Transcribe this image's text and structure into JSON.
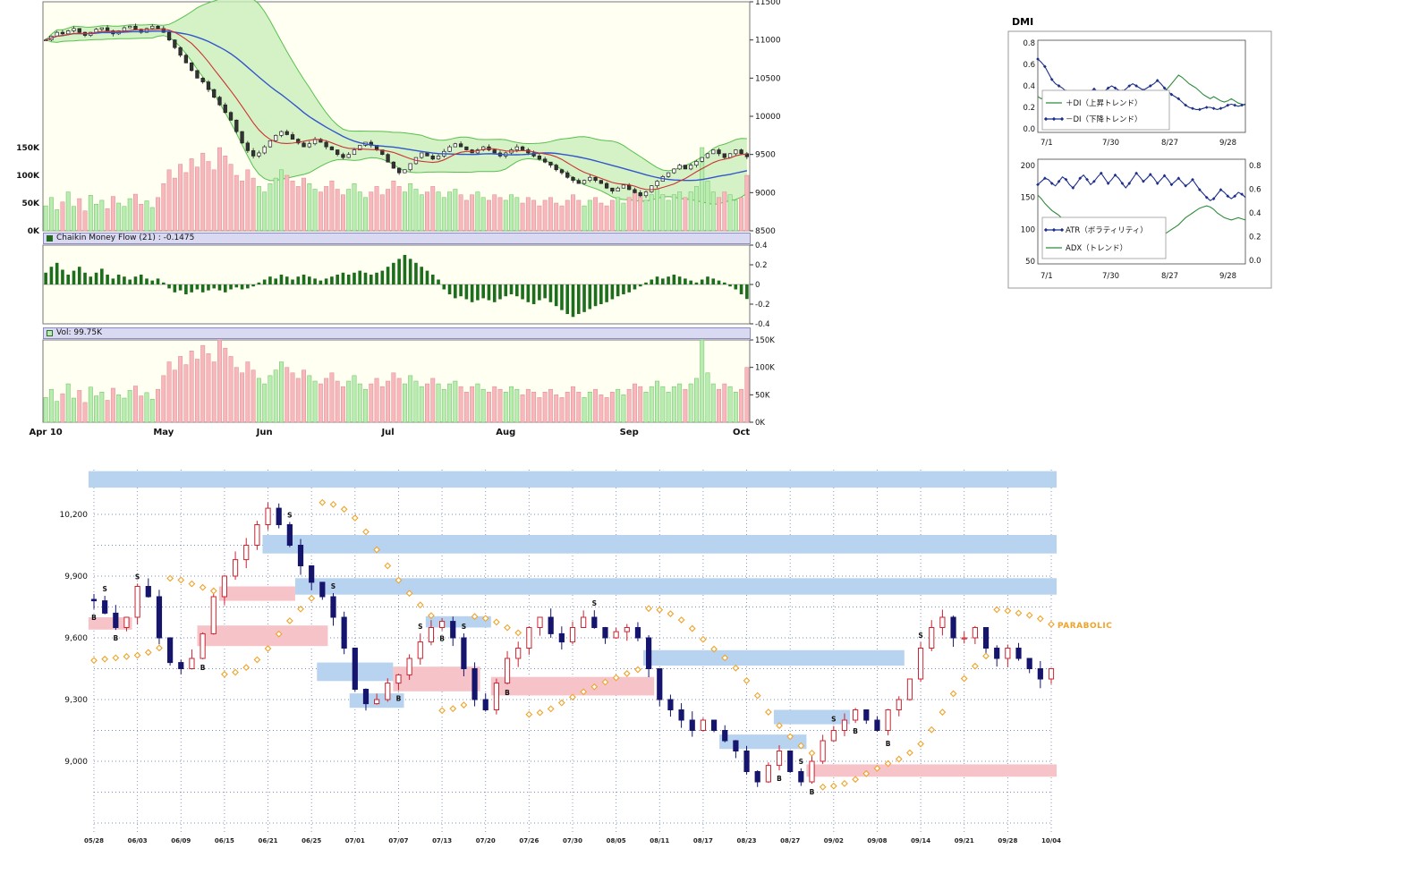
{
  "colors": {
    "panel_bg": "#fffff2",
    "bollinger_fill": "#c9efb9",
    "bollinger_edge": "#57c04f",
    "ma_short": "#cc3333",
    "ma_long": "#3355cc",
    "candle_outline": "#222222",
    "vol_up": "#b8ecb0",
    "vol_up_edge": "#6abf60",
    "vol_down": "#f6b8bc",
    "vol_down_edge": "#e08890",
    "chaikin_bar": "#1c6e1c",
    "di_plus": "#2e8b3a",
    "di_minus": "#1c2f8a",
    "atr": "#1c2f8a",
    "adx": "#2e8b3a",
    "band_blue": "#b7d3f0",
    "band_pink": "#f6c3c8",
    "para_up_outline": "#cc2330",
    "para_down_fill": "#15156e",
    "sar": "#efa32a",
    "grid_dot": "#7a8fbf",
    "strip_bg": "#d9d9f2"
  },
  "main_chart": {
    "price_axis": [
      "11500",
      "11000",
      "10500",
      "10000",
      "9500",
      "9000",
      "8500"
    ],
    "vol_overlay_axis": [
      "150K",
      "100K",
      "50K",
      "0K"
    ],
    "months": [
      {
        "label": "Apr 10",
        "i": 0
      },
      {
        "label": "May",
        "i": 21
      },
      {
        "label": "Jun",
        "i": 39
      },
      {
        "label": "Jul",
        "i": 61
      },
      {
        "label": "Aug",
        "i": 82
      },
      {
        "label": "Sep",
        "i": 104
      },
      {
        "label": "Oct",
        "i": 124
      }
    ],
    "chaikin": {
      "header": "Chaikin Money Flow (21) : -0.1475",
      "axis": [
        "0.4",
        "0.2",
        "0",
        "-0.2",
        "-0.4"
      ]
    },
    "vol": {
      "header": "Vol: 99.75K",
      "axis": [
        "150K",
        "100K",
        "50K",
        "0K"
      ]
    }
  },
  "dmi": {
    "title": "DMI",
    "x_labels": [
      "7/1",
      "7/30",
      "8/27",
      "9/28"
    ],
    "chart1": {
      "y_labels": [
        "0.8",
        "0.6",
        "0.4",
        "0.2",
        "0.0"
      ],
      "legend": [
        "＋DI（上昇トレンド）",
        "－DI（下降トレンド）"
      ]
    },
    "chart2": {
      "left_labels": [
        "200",
        "150",
        "100",
        "50"
      ],
      "right_labels": [
        "0.8",
        "0.6",
        "0.4",
        "0.2",
        "0.0"
      ],
      "legend": [
        "ATR（ボラティリティ）",
        "ADX（トレンド）"
      ]
    }
  },
  "parabolic": {
    "label": "PARABOLIC",
    "y_axis": [
      {
        "v": 10200,
        "t": "10,200"
      },
      {
        "v": 9900,
        "t": "9,900"
      },
      {
        "v": 9600,
        "t": "9,600"
      },
      {
        "v": 9300,
        "t": "9,300"
      },
      {
        "v": 9000,
        "t": "9,000"
      }
    ]
  },
  "chart_data": [
    {
      "type": "candlestick",
      "name": "daily-price-with-bollinger",
      "ylim": [
        8500,
        11500
      ],
      "overlays": [
        "bollinger(20,2)",
        "sma9",
        "sma25"
      ],
      "closes": [
        11000,
        11050,
        11100,
        11080,
        11120,
        11150,
        11100,
        11060,
        11100,
        11140,
        11160,
        11120,
        11080,
        11120,
        11160,
        11180,
        11140,
        11100,
        11150,
        11180,
        11150,
        11100,
        11000,
        10900,
        10800,
        10700,
        10600,
        10500,
        10450,
        10350,
        10250,
        10150,
        10050,
        9950,
        9800,
        9650,
        9550,
        9480,
        9520,
        9600,
        9680,
        9750,
        9800,
        9760,
        9700,
        9650,
        9600,
        9640,
        9700,
        9660,
        9600,
        9560,
        9500,
        9460,
        9500,
        9560,
        9620,
        9660,
        9620,
        9560,
        9500,
        9400,
        9320,
        9260,
        9300,
        9380,
        9460,
        9520,
        9480,
        9440,
        9480,
        9540,
        9600,
        9640,
        9600,
        9560,
        9520,
        9560,
        9600,
        9560,
        9520,
        9480,
        9520,
        9560,
        9600,
        9560,
        9520,
        9480,
        9440,
        9400,
        9360,
        9300,
        9260,
        9200,
        9160,
        9120,
        9160,
        9200,
        9160,
        9120,
        9060,
        9020,
        9060,
        9100,
        9040,
        9000,
        8960,
        9010,
        9090,
        9150,
        9210,
        9260,
        9310,
        9360,
        9310,
        9360,
        9410,
        9460,
        9510,
        9560,
        9510,
        9460,
        9510,
        9560,
        9510,
        9470
      ],
      "volumes": [
        45,
        60,
        38,
        52,
        70,
        44,
        58,
        36,
        64,
        48,
        55,
        40,
        62,
        50,
        44,
        58,
        66,
        48,
        54,
        42,
        60,
        85,
        110,
        95,
        120,
        105,
        130,
        115,
        140,
        125,
        110,
        150,
        135,
        120,
        100,
        90,
        110,
        95,
        80,
        70,
        85,
        95,
        110,
        100,
        90,
        80,
        95,
        85,
        75,
        70,
        80,
        90,
        75,
        65,
        75,
        85,
        70,
        60,
        70,
        80,
        65,
        75,
        90,
        80,
        70,
        85,
        75,
        65,
        70,
        80,
        70,
        60,
        70,
        75,
        65,
        55,
        65,
        70,
        60,
        55,
        65,
        60,
        55,
        65,
        60,
        50,
        60,
        55,
        45,
        55,
        60,
        50,
        45,
        55,
        65,
        55,
        45,
        55,
        60,
        50,
        45,
        55,
        60,
        50,
        60,
        70,
        65,
        55,
        65,
        75,
        65,
        55,
        65,
        70,
        60,
        70,
        80,
        150,
        90,
        70,
        60,
        70,
        65,
        55,
        60,
        100
      ]
    },
    {
      "type": "bar",
      "name": "chaikin-money-flow-21",
      "ylim": [
        -0.4,
        0.4
      ],
      "current": -0.1475,
      "values": [
        0.12,
        0.18,
        0.22,
        0.15,
        0.1,
        0.14,
        0.18,
        0.12,
        0.08,
        0.12,
        0.16,
        0.1,
        0.06,
        0.1,
        0.08,
        0.05,
        0.08,
        0.1,
        0.06,
        0.04,
        0.06,
        0.02,
        -0.04,
        -0.08,
        -0.06,
        -0.1,
        -0.08,
        -0.05,
        -0.08,
        -0.06,
        -0.04,
        -0.06,
        -0.08,
        -0.05,
        -0.03,
        -0.05,
        -0.04,
        -0.02,
        0.02,
        0.05,
        0.08,
        0.06,
        0.1,
        0.08,
        0.05,
        0.08,
        0.1,
        0.08,
        0.06,
        0.04,
        0.06,
        0.08,
        0.1,
        0.12,
        0.1,
        0.12,
        0.14,
        0.12,
        0.1,
        0.12,
        0.14,
        0.18,
        0.22,
        0.26,
        0.3,
        0.26,
        0.22,
        0.18,
        0.14,
        0.1,
        0.05,
        -0.05,
        -0.1,
        -0.14,
        -0.12,
        -0.15,
        -0.18,
        -0.16,
        -0.14,
        -0.16,
        -0.18,
        -0.15,
        -0.12,
        -0.1,
        -0.12,
        -0.15,
        -0.18,
        -0.2,
        -0.16,
        -0.14,
        -0.18,
        -0.22,
        -0.26,
        -0.3,
        -0.33,
        -0.3,
        -0.28,
        -0.25,
        -0.22,
        -0.2,
        -0.18,
        -0.15,
        -0.12,
        -0.1,
        -0.08,
        -0.05,
        -0.02,
        0.02,
        0.05,
        0.08,
        0.06,
        0.08,
        0.1,
        0.08,
        0.06,
        0.04,
        0.02,
        0.05,
        0.08,
        0.06,
        0.04,
        0.02,
        -0.02,
        -0.05,
        -0.1,
        -0.1475
      ]
    },
    {
      "type": "bar",
      "name": "volume",
      "ylim": [
        0,
        150
      ],
      "unit": "K",
      "current": "99.75K",
      "values_from": "chart_data[0].volumes"
    },
    {
      "type": "line",
      "name": "dmi",
      "ylim": [
        0,
        0.8
      ],
      "x_labels": [
        "7/1",
        "7/30",
        "8/27",
        "9/28"
      ],
      "series": [
        {
          "name": "+DI",
          "values": [
            0.3,
            0.28,
            0.3,
            0.32,
            0.35,
            0.33,
            0.3,
            0.28,
            0.3,
            0.32,
            0.35,
            0.33,
            0.32,
            0.35,
            0.33,
            0.3,
            0.28,
            0.3,
            0.32,
            0.3,
            0.28,
            0.3,
            0.32,
            0.35,
            0.33,
            0.3,
            0.32,
            0.3,
            0.28,
            0.3,
            0.32,
            0.35,
            0.33,
            0.35,
            0.3,
            0.32,
            0.35,
            0.38,
            0.42,
            0.46,
            0.5,
            0.48,
            0.45,
            0.42,
            0.4,
            0.38,
            0.35,
            0.32,
            0.3,
            0.28,
            0.3,
            0.28,
            0.26,
            0.25,
            0.26,
            0.28,
            0.26,
            0.24,
            0.23,
            0.22
          ]
        },
        {
          "name": "-DI",
          "values": [
            0.65,
            0.62,
            0.58,
            0.52,
            0.46,
            0.42,
            0.4,
            0.38,
            0.35,
            0.33,
            0.32,
            0.35,
            0.33,
            0.3,
            0.32,
            0.35,
            0.37,
            0.35,
            0.33,
            0.35,
            0.38,
            0.4,
            0.38,
            0.36,
            0.35,
            0.37,
            0.4,
            0.42,
            0.4,
            0.38,
            0.36,
            0.38,
            0.4,
            0.42,
            0.45,
            0.42,
            0.38,
            0.35,
            0.32,
            0.3,
            0.28,
            0.25,
            0.22,
            0.2,
            0.19,
            0.18,
            0.18,
            0.19,
            0.2,
            0.2,
            0.19,
            0.18,
            0.19,
            0.2,
            0.22,
            0.23,
            0.22,
            0.21,
            0.22,
            0.23
          ]
        }
      ]
    },
    {
      "type": "line",
      "name": "atr-adx",
      "x_labels": [
        "7/1",
        "7/30",
        "8/27",
        "9/28"
      ],
      "series": [
        {
          "name": "ATR",
          "ylim": [
            50,
            200
          ],
          "values": [
            170,
            175,
            180,
            178,
            172,
            168,
            175,
            182,
            178,
            170,
            165,
            172,
            180,
            185,
            178,
            170,
            175,
            182,
            188,
            180,
            172,
            178,
            185,
            180,
            172,
            165,
            172,
            180,
            188,
            182,
            175,
            180,
            186,
            180,
            172,
            178,
            184,
            178,
            170,
            175,
            180,
            174,
            168,
            172,
            178,
            170,
            162,
            156,
            150,
            145,
            148,
            155,
            162,
            158,
            152,
            148,
            152,
            158,
            155,
            150
          ]
        },
        {
          "name": "ADX",
          "ylim": [
            0,
            0.8
          ],
          "values": [
            0.55,
            0.52,
            0.48,
            0.45,
            0.42,
            0.4,
            0.38,
            0.35,
            0.32,
            0.3,
            0.28,
            0.26,
            0.25,
            0.24,
            0.22,
            0.21,
            0.2,
            0.2,
            0.21,
            0.22,
            0.24,
            0.26,
            0.28,
            0.3,
            0.29,
            0.27,
            0.25,
            0.23,
            0.22,
            0.21,
            0.2,
            0.19,
            0.18,
            0.18,
            0.19,
            0.2,
            0.22,
            0.24,
            0.26,
            0.28,
            0.3,
            0.33,
            0.36,
            0.38,
            0.4,
            0.42,
            0.44,
            0.45,
            0.46,
            0.45,
            0.43,
            0.4,
            0.38,
            0.36,
            0.35,
            0.34,
            0.35,
            0.36,
            0.35,
            0.34
          ]
        }
      ]
    },
    {
      "type": "candlestick",
      "name": "parabolic-sar-chart",
      "ylim": [
        8700,
        10500
      ],
      "sar": "parabolic(0.02,0.2)",
      "x_labels": [
        "05/28",
        "06/03",
        "06/09",
        "06/15",
        "06/21",
        "06/25",
        "07/01",
        "07/07",
        "07/13",
        "07/20",
        "07/26",
        "07/30",
        "08/05",
        "08/11",
        "08/17",
        "08/23",
        "08/27",
        "09/02",
        "09/08",
        "09/14",
        "09/21",
        "09/28",
        "10/04"
      ],
      "closes": [
        9780,
        9720,
        9650,
        9700,
        9850,
        9800,
        9600,
        9480,
        9450,
        9500,
        9620,
        9800,
        9900,
        9980,
        10050,
        10150,
        10230,
        10150,
        10050,
        9950,
        9870,
        9800,
        9700,
        9550,
        9350,
        9280,
        9300,
        9380,
        9420,
        9500,
        9580,
        9650,
        9680,
        9600,
        9450,
        9300,
        9250,
        9380,
        9500,
        9550,
        9650,
        9700,
        9620,
        9580,
        9650,
        9700,
        9650,
        9600,
        9630,
        9650,
        9600,
        9450,
        9300,
        9250,
        9200,
        9150,
        9200,
        9150,
        9100,
        9050,
        8950,
        8900,
        8980,
        9050,
        8950,
        8900,
        9000,
        9100,
        9150,
        9200,
        9250,
        9200,
        9150,
        9250,
        9300,
        9400,
        9550,
        9650,
        9700,
        9600,
        9600,
        9650,
        9550,
        9500,
        9550,
        9500,
        9450,
        9400,
        9450
      ],
      "bands": [
        {
          "i0": 0,
          "i1": 88,
          "p0": 10330,
          "p1": 10410,
          "c": "blue"
        },
        {
          "i0": 16,
          "i1": 88,
          "p0": 10010,
          "p1": 10100,
          "c": "blue"
        },
        {
          "i0": 19,
          "i1": 88,
          "p0": 9810,
          "p1": 9890,
          "c": "blue"
        },
        {
          "i0": 0,
          "i1": 3,
          "p0": 9640,
          "p1": 9700,
          "c": "pink"
        },
        {
          "i0": 12,
          "i1": 18,
          "p0": 9780,
          "p1": 9850,
          "c": "pink"
        },
        {
          "i0": 10,
          "i1": 21,
          "p0": 9560,
          "p1": 9660,
          "c": "pink"
        },
        {
          "i0": 21,
          "i1": 27,
          "p0": 9390,
          "p1": 9480,
          "c": "blue"
        },
        {
          "i0": 24,
          "i1": 28,
          "p0": 9260,
          "p1": 9330,
          "c": "blue"
        },
        {
          "i0": 28,
          "i1": 35,
          "p0": 9340,
          "p1": 9460,
          "c": "pink"
        },
        {
          "i0": 31,
          "i1": 36,
          "p0": 9650,
          "p1": 9705,
          "c": "blue"
        },
        {
          "i0": 37,
          "i1": 51,
          "p0": 9320,
          "p1": 9410,
          "c": "pink"
        },
        {
          "i0": 51,
          "i1": 74,
          "p0": 9465,
          "p1": 9540,
          "c": "blue"
        },
        {
          "i0": 58,
          "i1": 65,
          "p0": 9060,
          "p1": 9130,
          "c": "blue"
        },
        {
          "i0": 63,
          "i1": 69,
          "p0": 9180,
          "p1": 9250,
          "c": "blue"
        },
        {
          "i0": 66,
          "i1": 88,
          "p0": 8925,
          "p1": 8985,
          "c": "pink"
        }
      ],
      "markers": [
        {
          "i": 0,
          "s": "B"
        },
        {
          "i": 1,
          "s": "S"
        },
        {
          "i": 2,
          "s": "B"
        },
        {
          "i": 4,
          "s": "S"
        },
        {
          "i": 10,
          "s": "B"
        },
        {
          "i": 18,
          "s": "S"
        },
        {
          "i": 22,
          "s": "S"
        },
        {
          "i": 28,
          "s": "B"
        },
        {
          "i": 30,
          "s": "S"
        },
        {
          "i": 32,
          "s": "B"
        },
        {
          "i": 34,
          "s": "S"
        },
        {
          "i": 38,
          "s": "B"
        },
        {
          "i": 46,
          "s": "S"
        },
        {
          "i": 63,
          "s": "B"
        },
        {
          "i": 65,
          "s": "S"
        },
        {
          "i": 66,
          "s": "B"
        },
        {
          "i": 68,
          "s": "S"
        },
        {
          "i": 70,
          "s": "B"
        },
        {
          "i": 73,
          "s": "B"
        },
        {
          "i": 76,
          "s": "S"
        }
      ]
    }
  ]
}
